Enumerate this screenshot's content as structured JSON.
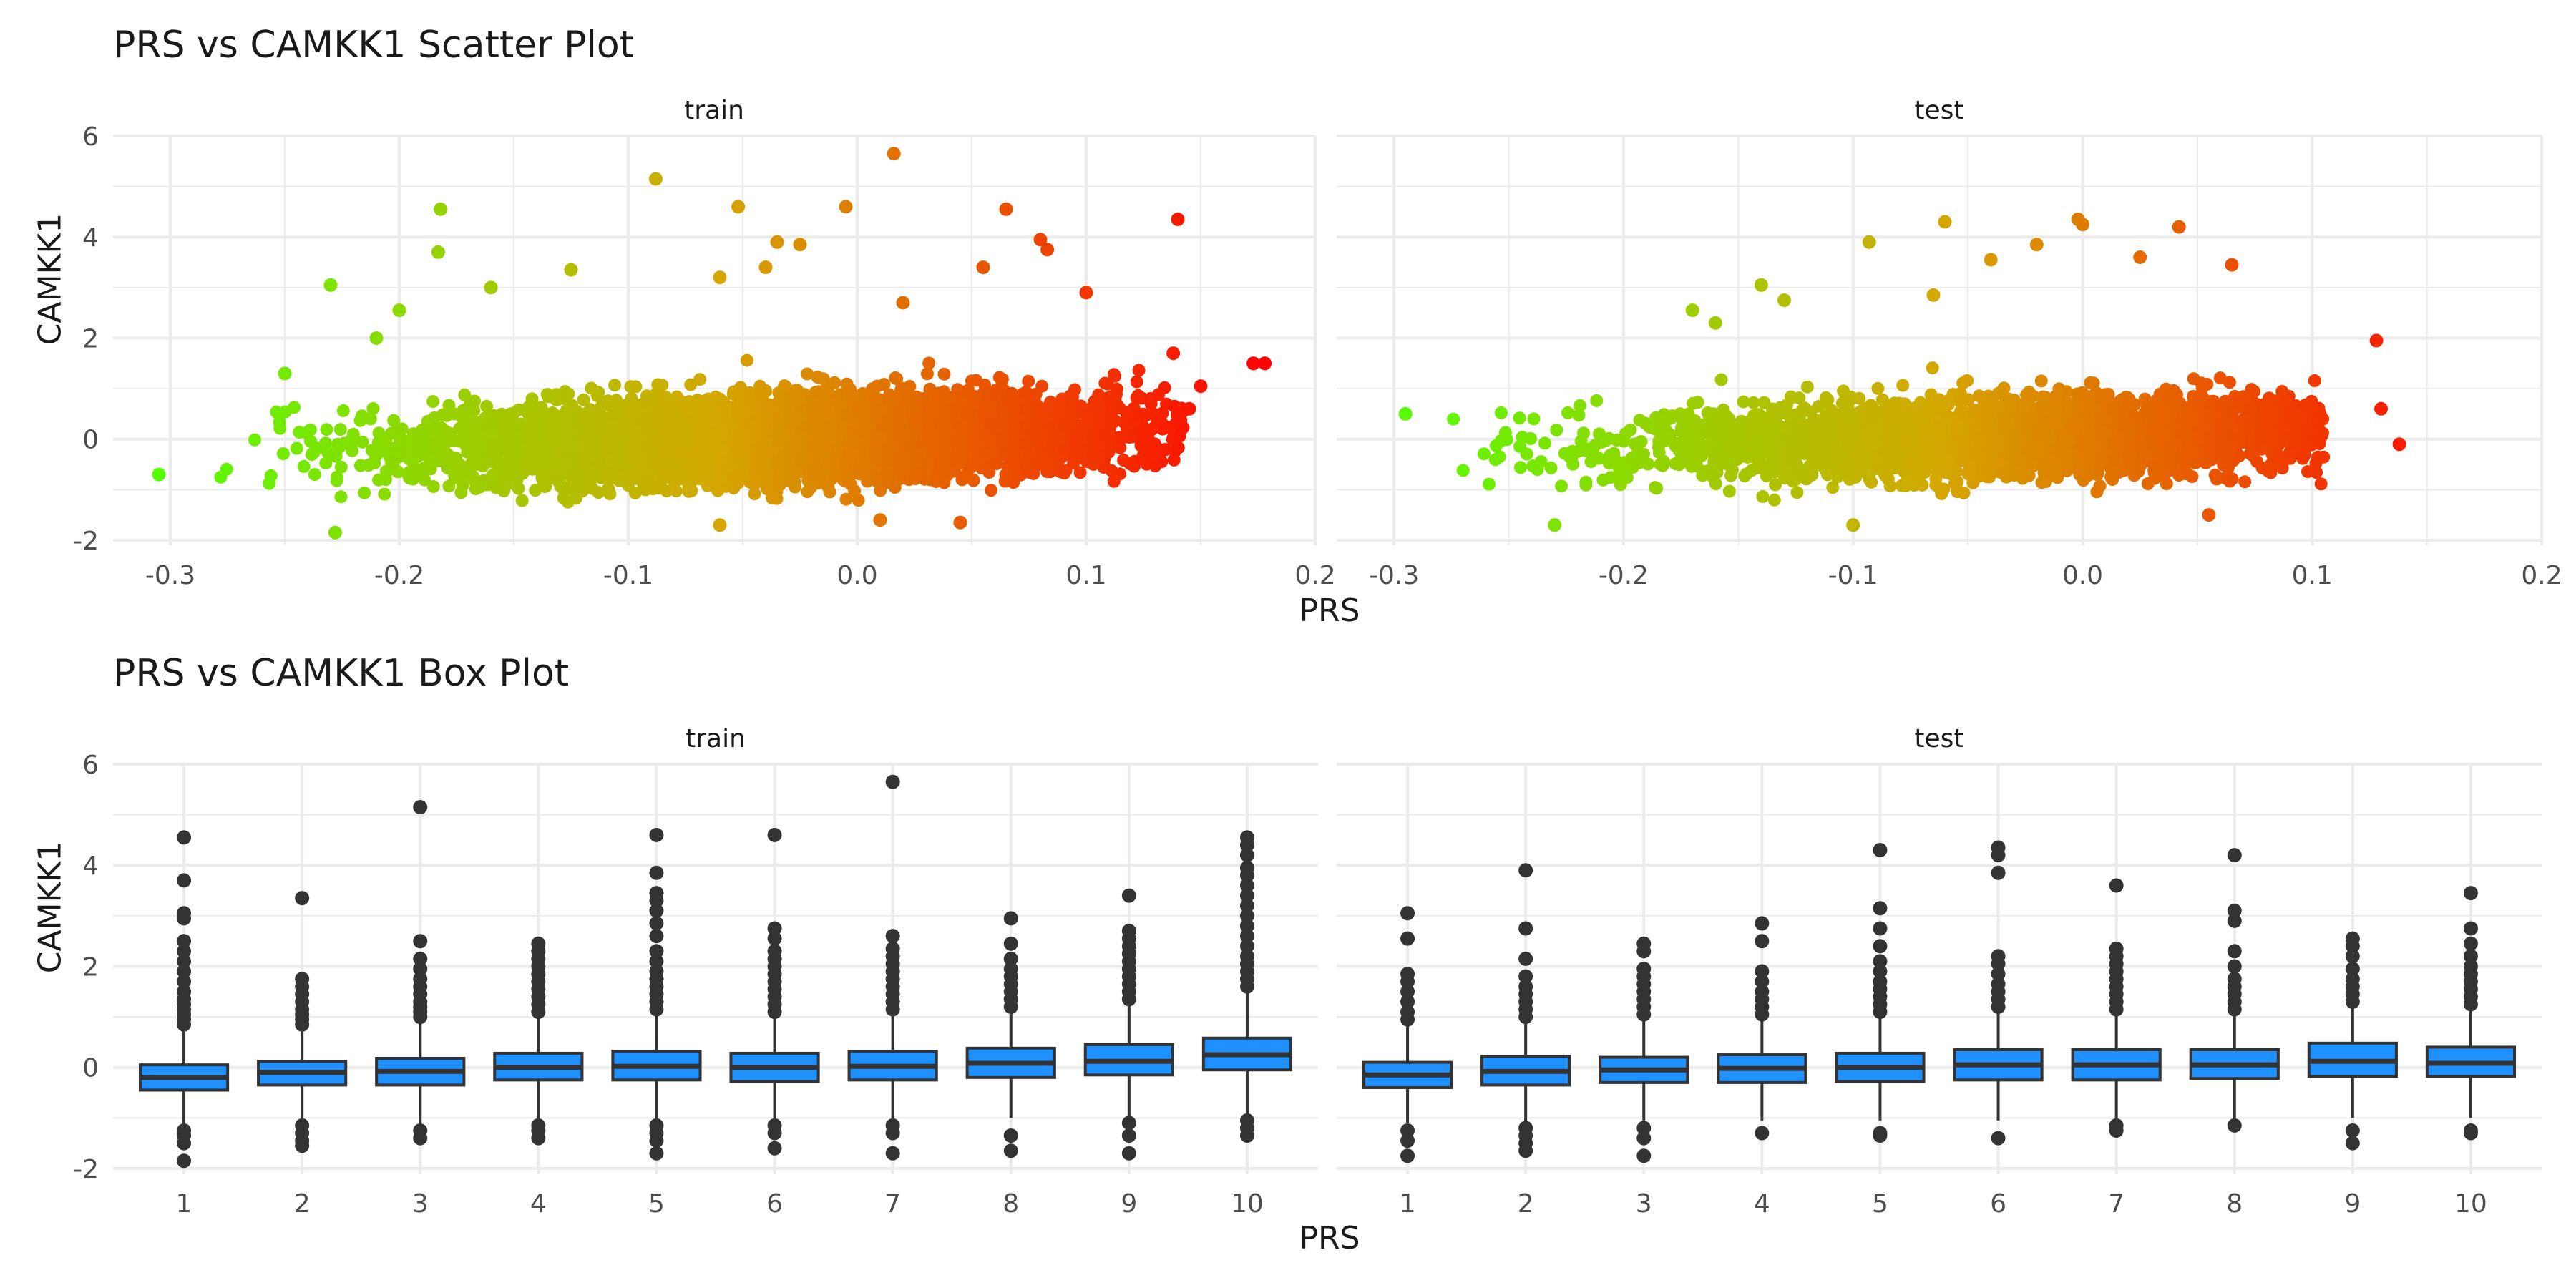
{
  "colors": {
    "background": "#ffffff",
    "grid": "#ebebeb",
    "text": "#1a1a1a",
    "tick_text": "#4d4d4d",
    "box_fill": "#1e90ff",
    "box_line": "#333333",
    "gradient_low": "#55ff00",
    "gradient_mid": "#d4a800",
    "gradient_high": "#ff0000"
  },
  "chart_data": [
    {
      "type": "scatter",
      "title": "PRS vs CAMKK1 Scatter Plot",
      "xlabel": "PRS",
      "ylabel": "CAMKK1",
      "xlim": [
        -0.325,
        0.2
      ],
      "ylim": [
        -2.1,
        6.0
      ],
      "x_ticks": [
        -0.3,
        -0.2,
        -0.1,
        0.0,
        0.1,
        0.2
      ],
      "x_tick_labels": [
        "-0.3",
        "-0.2",
        "-0.1",
        "0.0",
        "0.1",
        "0.2"
      ],
      "y_ticks": [
        -2,
        0,
        2,
        4,
        6
      ],
      "y_tick_labels": [
        "-2",
        "0",
        "2",
        "4",
        "6"
      ],
      "grid": true,
      "legend": "none",
      "color_by": "PRS",
      "panels": [
        {
          "label": "train",
          "x_range": [
            -0.305,
            0.178
          ],
          "cloud_sd": 0.4,
          "n_cloud": 5500,
          "points": [
            {
              "x": -0.305,
              "y": -0.7
            },
            {
              "x": -0.23,
              "y": 3.05
            },
            {
              "x": -0.228,
              "y": -1.85
            },
            {
              "x": -0.182,
              "y": 4.55
            },
            {
              "x": -0.183,
              "y": 3.7
            },
            {
              "x": -0.16,
              "y": 3.0
            },
            {
              "x": -0.125,
              "y": 3.35
            },
            {
              "x": -0.088,
              "y": 5.15
            },
            {
              "x": -0.052,
              "y": 4.6
            },
            {
              "x": -0.06,
              "y": 3.2
            },
            {
              "x": -0.04,
              "y": 3.4
            },
            {
              "x": -0.035,
              "y": 3.9
            },
            {
              "x": -0.025,
              "y": 3.85
            },
            {
              "x": -0.005,
              "y": 4.6
            },
            {
              "x": 0.016,
              "y": 5.65
            },
            {
              "x": 0.065,
              "y": 4.55
            },
            {
              "x": 0.08,
              "y": 3.95
            },
            {
              "x": 0.083,
              "y": 3.75
            },
            {
              "x": 0.14,
              "y": 4.35
            },
            {
              "x": 0.173,
              "y": 1.5
            },
            {
              "x": 0.178,
              "y": 1.5
            },
            {
              "x": 0.15,
              "y": 1.05
            },
            {
              "x": 0.145,
              "y": 0.6
            },
            {
              "x": 0.138,
              "y": 1.7
            },
            {
              "x": 0.1,
              "y": 2.9
            },
            {
              "x": 0.055,
              "y": 3.4
            },
            {
              "x": 0.01,
              "y": -1.6
            },
            {
              "x": -0.06,
              "y": -1.7
            },
            {
              "x": 0.045,
              "y": -1.65
            },
            {
              "x": -0.2,
              "y": 2.55
            },
            {
              "x": -0.21,
              "y": 2.0
            },
            {
              "x": -0.25,
              "y": 1.3
            },
            {
              "x": 0.02,
              "y": 2.7
            }
          ]
        },
        {
          "label": "test",
          "x_range": [
            -0.295,
            0.14
          ],
          "cloud_sd": 0.38,
          "n_cloud": 3200,
          "points": [
            {
              "x": -0.295,
              "y": 0.5
            },
            {
              "x": -0.14,
              "y": 3.05
            },
            {
              "x": -0.093,
              "y": 3.9
            },
            {
              "x": -0.06,
              "y": 4.3
            },
            {
              "x": -0.04,
              "y": 3.55
            },
            {
              "x": -0.065,
              "y": 2.85
            },
            {
              "x": -0.02,
              "y": 3.85
            },
            {
              "x": -0.002,
              "y": 4.35
            },
            {
              "x": 0.0,
              "y": 4.25
            },
            {
              "x": 0.042,
              "y": 4.2
            },
            {
              "x": 0.065,
              "y": 3.45
            },
            {
              "x": 0.025,
              "y": 3.6
            },
            {
              "x": 0.128,
              "y": 1.95
            },
            {
              "x": 0.138,
              "y": -0.1
            },
            {
              "x": 0.13,
              "y": 0.6
            },
            {
              "x": -0.23,
              "y": -1.7
            },
            {
              "x": -0.1,
              "y": -1.7
            },
            {
              "x": 0.055,
              "y": -1.5
            },
            {
              "x": -0.17,
              "y": 2.55
            },
            {
              "x": -0.16,
              "y": 2.3
            },
            {
              "x": -0.13,
              "y": 2.75
            }
          ]
        }
      ]
    },
    {
      "type": "box",
      "title": "PRS vs CAMKK1 Box Plot",
      "xlabel": "PRS",
      "ylabel": "CAMKK1",
      "categories": [
        "1",
        "2",
        "3",
        "4",
        "5",
        "6",
        "7",
        "8",
        "9",
        "10"
      ],
      "ylim": [
        -2.1,
        6.0
      ],
      "y_ticks": [
        -2,
        0,
        2,
        4,
        6
      ],
      "y_tick_labels": [
        "-2",
        "0",
        "2",
        "4",
        "6"
      ],
      "grid": true,
      "legend": "none",
      "panels": [
        {
          "label": "train",
          "boxes": [
            {
              "q1": -0.45,
              "median": -0.2,
              "q3": 0.05,
              "whisker_low": -1.15,
              "whisker_high": 0.8,
              "outliers_high": [
                0.85,
                0.95,
                1.05,
                1.15,
                1.25,
                1.35,
                1.5,
                1.7,
                1.9,
                2.1,
                2.3,
                2.5,
                2.95,
                3.05,
                3.7,
                4.55
              ],
              "outliers_low": [
                -1.25,
                -1.35,
                -1.5,
                -1.85
              ]
            },
            {
              "q1": -0.35,
              "median": -0.1,
              "q3": 0.12,
              "whisker_low": -1.05,
              "whisker_high": 0.8,
              "outliers_high": [
                0.85,
                0.95,
                1.05,
                1.15,
                1.3,
                1.45,
                1.6,
                1.75,
                3.35
              ],
              "outliers_low": [
                -1.15,
                -1.3,
                -1.45,
                -1.55
              ]
            },
            {
              "q1": -0.35,
              "median": -0.08,
              "q3": 0.18,
              "whisker_low": -1.15,
              "whisker_high": 0.95,
              "outliers_high": [
                1.0,
                1.1,
                1.2,
                1.3,
                1.45,
                1.6,
                1.75,
                1.95,
                2.15,
                2.5,
                5.15
              ],
              "outliers_low": [
                -1.25,
                -1.4
              ]
            },
            {
              "q1": -0.25,
              "median": 0.0,
              "q3": 0.28,
              "whisker_low": -1.05,
              "whisker_high": 1.05,
              "outliers_high": [
                1.1,
                1.25,
                1.4,
                1.55,
                1.7,
                1.85,
                2.0,
                2.15,
                2.3,
                2.45
              ],
              "outliers_low": [
                -1.15,
                -1.25,
                -1.4
              ]
            },
            {
              "q1": -0.25,
              "median": 0.02,
              "q3": 0.32,
              "whisker_low": -1.05,
              "whisker_high": 1.1,
              "outliers_high": [
                1.15,
                1.3,
                1.45,
                1.6,
                1.75,
                1.9,
                2.1,
                2.3,
                2.6,
                2.85,
                3.1,
                3.3,
                3.45,
                3.85,
                4.6
              ],
              "outliers_low": [
                -1.15,
                -1.3,
                -1.45,
                -1.7
              ]
            },
            {
              "q1": -0.28,
              "median": 0.0,
              "q3": 0.28,
              "whisker_low": -1.05,
              "whisker_high": 1.05,
              "outliers_high": [
                1.1,
                1.25,
                1.4,
                1.55,
                1.7,
                1.85,
                2.0,
                2.15,
                2.3,
                2.55,
                2.75,
                4.6
              ],
              "outliers_low": [
                -1.15,
                -1.3,
                -1.6
              ]
            },
            {
              "q1": -0.25,
              "median": 0.02,
              "q3": 0.32,
              "whisker_low": -1.05,
              "whisker_high": 1.1,
              "outliers_high": [
                1.15,
                1.3,
                1.45,
                1.6,
                1.75,
                1.9,
                2.05,
                2.2,
                2.35,
                2.6,
                5.65
              ],
              "outliers_low": [
                -1.15,
                -1.3,
                -1.7
              ]
            },
            {
              "q1": -0.2,
              "median": 0.08,
              "q3": 0.38,
              "whisker_low": -1.0,
              "whisker_high": 1.15,
              "outliers_high": [
                1.2,
                1.35,
                1.5,
                1.65,
                1.8,
                1.95,
                2.15,
                2.45,
                2.95
              ],
              "outliers_low": [
                -1.35,
                -1.65
              ]
            },
            {
              "q1": -0.15,
              "median": 0.12,
              "q3": 0.45,
              "whisker_low": -1.0,
              "whisker_high": 1.3,
              "outliers_high": [
                1.35,
                1.5,
                1.65,
                1.8,
                1.95,
                2.1,
                2.25,
                2.4,
                2.55,
                2.7,
                3.4
              ],
              "outliers_low": [
                -1.1,
                -1.35,
                -1.7
              ]
            },
            {
              "q1": -0.05,
              "median": 0.25,
              "q3": 0.58,
              "whisker_low": -0.95,
              "whisker_high": 1.5,
              "outliers_high": [
                1.6,
                1.75,
                1.9,
                2.05,
                2.2,
                2.4,
                2.6,
                2.8,
                3.0,
                3.2,
                3.4,
                3.6,
                3.8,
                3.95,
                4.2,
                4.4,
                4.55
              ],
              "outliers_low": [
                -1.05,
                -1.2,
                -1.35
              ]
            }
          ]
        },
        {
          "label": "test",
          "boxes": [
            {
              "q1": -0.4,
              "median": -0.15,
              "q3": 0.1,
              "whisker_low": -1.1,
              "whisker_high": 0.85,
              "outliers_high": [
                0.95,
                1.1,
                1.3,
                1.5,
                1.7,
                1.85,
                2.55,
                3.05
              ],
              "outliers_low": [
                -1.25,
                -1.45,
                -1.75
              ]
            },
            {
              "q1": -0.35,
              "median": -0.08,
              "q3": 0.22,
              "whisker_low": -1.1,
              "whisker_high": 0.95,
              "outliers_high": [
                1.0,
                1.15,
                1.3,
                1.45,
                1.6,
                1.8,
                2.15,
                2.75,
                3.9
              ],
              "outliers_low": [
                -1.2,
                -1.35,
                -1.5,
                -1.65
              ]
            },
            {
              "q1": -0.3,
              "median": -0.05,
              "q3": 0.2,
              "whisker_low": -1.05,
              "whisker_high": 1.0,
              "outliers_high": [
                1.05,
                1.2,
                1.35,
                1.5,
                1.65,
                1.8,
                1.95,
                2.3,
                2.45
              ],
              "outliers_low": [
                -1.2,
                -1.4,
                -1.75
              ]
            },
            {
              "q1": -0.3,
              "median": -0.02,
              "q3": 0.25,
              "whisker_low": -1.05,
              "whisker_high": 1.0,
              "outliers_high": [
                1.05,
                1.2,
                1.35,
                1.5,
                1.7,
                1.9,
                2.5,
                2.85
              ],
              "outliers_low": [
                -1.3
              ]
            },
            {
              "q1": -0.28,
              "median": 0.0,
              "q3": 0.28,
              "whisker_low": -1.05,
              "whisker_high": 1.05,
              "outliers_high": [
                1.1,
                1.25,
                1.4,
                1.55,
                1.7,
                1.9,
                2.1,
                2.4,
                2.75,
                3.15,
                4.3
              ],
              "outliers_low": [
                -1.3,
                -1.35
              ]
            },
            {
              "q1": -0.25,
              "median": 0.05,
              "q3": 0.35,
              "whisker_low": -1.05,
              "whisker_high": 1.15,
              "outliers_high": [
                1.2,
                1.35,
                1.5,
                1.65,
                1.85,
                2.05,
                2.2,
                3.85,
                4.2,
                4.35
              ],
              "outliers_low": [
                -1.4
              ]
            },
            {
              "q1": -0.25,
              "median": 0.05,
              "q3": 0.35,
              "whisker_low": -1.05,
              "whisker_high": 1.1,
              "outliers_high": [
                1.15,
                1.3,
                1.45,
                1.6,
                1.75,
                1.9,
                2.05,
                2.2,
                2.35,
                3.6
              ],
              "outliers_low": [
                -1.15,
                -1.25
              ]
            },
            {
              "q1": -0.22,
              "median": 0.05,
              "q3": 0.35,
              "whisker_low": -1.0,
              "whisker_high": 1.1,
              "outliers_high": [
                1.15,
                1.3,
                1.45,
                1.6,
                1.75,
                2.0,
                2.3,
                2.9,
                3.1,
                4.2
              ],
              "outliers_low": [
                -1.15
              ]
            },
            {
              "q1": -0.18,
              "median": 0.12,
              "q3": 0.48,
              "whisker_low": -1.0,
              "whisker_high": 1.25,
              "outliers_high": [
                1.3,
                1.45,
                1.6,
                1.75,
                1.95,
                2.2,
                2.4,
                2.55
              ],
              "outliers_low": [
                -1.25,
                -1.5
              ]
            },
            {
              "q1": -0.18,
              "median": 0.08,
              "q3": 0.4,
              "whisker_low": -1.0,
              "whisker_high": 1.2,
              "outliers_high": [
                1.25,
                1.4,
                1.55,
                1.7,
                1.85,
                2.0,
                2.2,
                2.45,
                2.75,
                3.45
              ],
              "outliers_low": [
                -1.25,
                -1.3
              ]
            }
          ]
        }
      ]
    }
  ]
}
